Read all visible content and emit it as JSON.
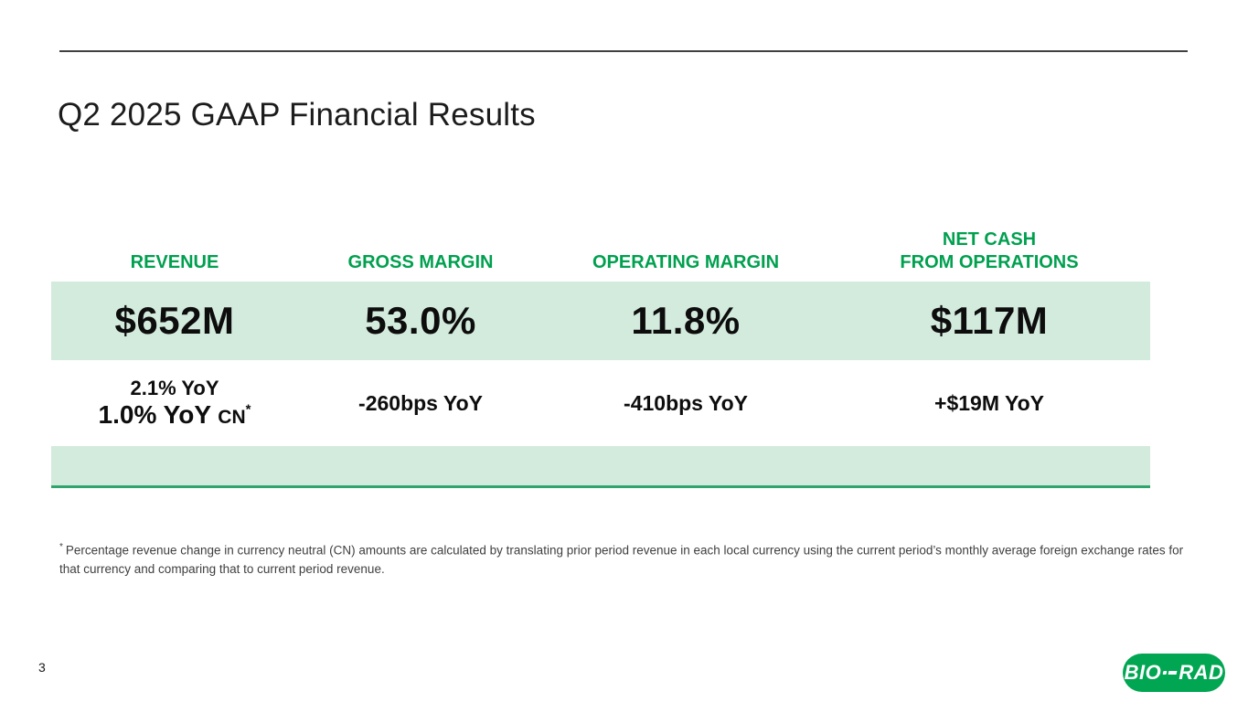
{
  "slide": {
    "title": "Q2 2025 GAAP Financial Results",
    "page_number": "3"
  },
  "table": {
    "headers": [
      {
        "label": "REVENUE"
      },
      {
        "label": "GROSS MARGIN"
      },
      {
        "label": "OPERATING MARGIN"
      },
      {
        "label": "NET CASH\nFROM OPERATIONS"
      }
    ],
    "values": [
      {
        "value": "$652M"
      },
      {
        "value": "53.0%"
      },
      {
        "value": "11.8%"
      },
      {
        "value": "$117M"
      }
    ],
    "yoy": {
      "revenue_line1": "2.1% YoY",
      "revenue_line2": "1.0% YoY",
      "revenue_line2_suffix": "CN",
      "revenue_line2_sup": "*",
      "gross_margin": "-260bps YoY",
      "operating_margin": "-410bps YoY",
      "net_cash": "+$19M YoY"
    }
  },
  "footnote": {
    "marker": "*",
    "text": "Percentage revenue change in currency neutral (CN) amounts are calculated by translating prior period revenue in each local currency using the current period’s monthly average foreign exchange rates for that currency and comparing that to current period revenue."
  },
  "footer": {
    "logo_left": "BIO",
    "logo_right": "RAD"
  },
  "colors": {
    "brand_green": "#00A651",
    "header_green": "#00A04F",
    "band_mint": "#D3EBDD",
    "divider_green": "#2FA56D",
    "top_rule_gray": "#404040"
  }
}
